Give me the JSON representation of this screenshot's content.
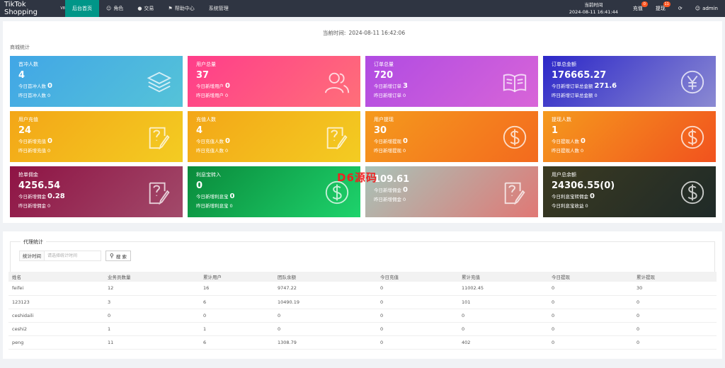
{
  "topnav": {
    "brand": "TikTok Shopping",
    "brand_sup": "V8",
    "items": [
      {
        "label": "后台首页",
        "icon": "",
        "active": true
      },
      {
        "label": "角色",
        "icon": "user-icon",
        "active": false
      },
      {
        "label": "交易",
        "icon": "money-icon",
        "active": false
      },
      {
        "label": "帮助中心",
        "icon": "flag-icon",
        "active": false
      },
      {
        "label": "系统管理",
        "icon": "",
        "active": false
      }
    ],
    "time_label": "当前时间",
    "time_value": "2024-08-11 16:41:44",
    "recharge_label": "充值",
    "recharge_badge": "0",
    "withdraw_label": "提现",
    "withdraw_badge": "11",
    "refresh_icon": "refresh-icon",
    "admin_label": "admin"
  },
  "main": {
    "current_time_label": "当前时间:",
    "current_time_value": "2024-08-11 16:42:06",
    "section_title": "商城统计"
  },
  "cards": [
    {
      "title": "首冲人数",
      "value": "4",
      "today_label": "今日首冲人数",
      "today_value": "0",
      "yest_label": "昨日首冲人数",
      "yest_value": "0",
      "icon": "layers-icon",
      "bg": "linear-gradient(135deg,#41a6e6,#55c3d8)"
    },
    {
      "title": "用户总量",
      "value": "37",
      "today_label": "今日新增用户",
      "today_value": "0",
      "yest_label": "昨日新增用户",
      "yest_value": "0",
      "icon": "users-icon",
      "bg": "linear-gradient(135deg,#ff3d8a,#ff6f79)"
    },
    {
      "title": "订单总量",
      "value": "720",
      "today_label": "今日新增订单",
      "today_value": "3",
      "yest_label": "昨日新增订单",
      "yest_value": "0",
      "icon": "book-icon",
      "bg": "linear-gradient(135deg,#b04be2,#d865d8)"
    },
    {
      "title": "订单总金额",
      "value": "176665.27",
      "today_label": "今日新增订单总金额",
      "today_value": "271.6",
      "yest_label": "昨日新增订单总金额",
      "yest_value": "0",
      "icon": "yen-icon",
      "bg": "linear-gradient(135deg,#2c27c8,#8b8ad2)"
    },
    {
      "title": "用户充值",
      "value": "24",
      "today_label": "今日新增充值",
      "today_value": "0",
      "yest_label": "昨日新增充值",
      "yest_value": "0",
      "icon": "edit-icon",
      "bg": "linear-gradient(135deg,#f3a617,#f3cc22)"
    },
    {
      "title": "充值人数",
      "value": "4",
      "today_label": "今日充值人数",
      "today_value": "0",
      "yest_label": "昨日充值人数",
      "yest_value": "0",
      "icon": "edit-icon",
      "bg": "linear-gradient(135deg,#f3a617,#f3cc22)"
    },
    {
      "title": "用户提现",
      "value": "30",
      "today_label": "今日新增提现",
      "today_value": "0",
      "yest_label": "昨日新增提现",
      "yest_value": "0",
      "icon": "dollar-icon",
      "bg": "linear-gradient(135deg,#f59a1d,#f36a1e)"
    },
    {
      "title": "提现人数",
      "value": "1",
      "today_label": "今日提现人数",
      "today_value": "0",
      "yest_label": "昨日提现人数",
      "yest_value": "0",
      "icon": "dollar-icon",
      "bg": "linear-gradient(135deg,#f59a1d,#f1521e)"
    },
    {
      "title": "抢单佣金",
      "value": "4256.54",
      "today_label": "今日新增佣金",
      "today_value": "0.28",
      "yest_label": "昨日新增佣金",
      "yest_value": "0",
      "icon": "edit-icon",
      "bg": "linear-gradient(135deg,#8e1344,#a24a6a)"
    },
    {
      "title": "利息宝转入",
      "value": "0",
      "today_label": "今日新增利息宝",
      "today_value": "0",
      "yest_label": "昨日新增利息宝",
      "yest_value": "0",
      "icon": "dollar-icon",
      "bg": "linear-gradient(135deg,#0a8a3b,#1ed36c)"
    },
    {
      "title": "",
      "value": "109.61",
      "today_label": "今日新增佣金",
      "today_value": "0",
      "yest_label": "昨日新增佣金",
      "yest_value": "0",
      "icon": "edit-icon",
      "bg": "linear-gradient(135deg,#a8c3b8,#e07875)"
    },
    {
      "title": "用户总余额",
      "value": "24306.55(0)",
      "today_label": "今日利息宝转佣金",
      "today_value": "0",
      "yest_label": "今日利息宝收益",
      "yest_value": "0",
      "icon": "dollar-icon",
      "bg": "linear-gradient(135deg,#3b3a21,#1f2a28)"
    }
  ],
  "watermark": "D6源码",
  "agent": {
    "legend": "代理统计",
    "filter_label": "统计时间",
    "filter_placeholder": "请选择统计时间",
    "search_label": "搜 索",
    "columns": [
      "姓名",
      "业务员数量",
      "累计用户",
      "团队余额",
      "今日充值",
      "累计充值",
      "今日提现",
      "累计提现"
    ],
    "rows": [
      [
        "feifei",
        "12",
        "16",
        "9747.22",
        "0",
        "11002.45",
        "0",
        "30"
      ],
      [
        "123123",
        "3",
        "6",
        "10490.19",
        "0",
        "101",
        "0",
        "0"
      ],
      [
        "ceshidaili",
        "0",
        "0",
        "0",
        "0",
        "0",
        "0",
        "0"
      ],
      [
        "ceshi2",
        "1",
        "1",
        "0",
        "0",
        "0",
        "0",
        "0"
      ],
      [
        "peng",
        "11",
        "6",
        "1308.79",
        "0",
        "402",
        "0",
        "0"
      ]
    ]
  }
}
